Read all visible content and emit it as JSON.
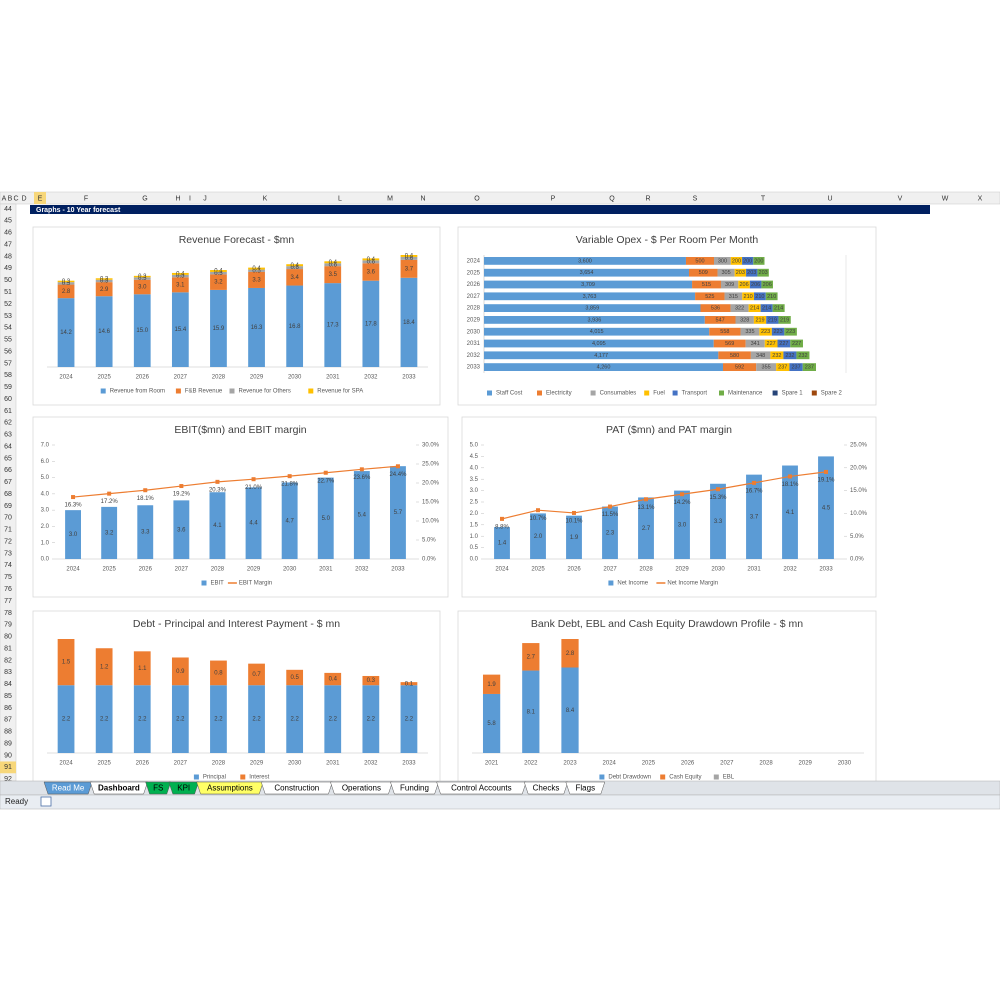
{
  "sheet": {
    "columns": [
      "A",
      "B",
      "C",
      "D",
      "E",
      "F",
      "G",
      "H",
      "I",
      "J",
      "K",
      "L",
      "M",
      "N",
      "O",
      "P",
      "Q",
      "R",
      "S",
      "T",
      "U",
      "V",
      "W",
      "X"
    ],
    "rows": [
      44,
      45,
      46,
      47,
      48,
      49,
      50,
      51,
      52,
      53,
      54,
      55,
      56,
      57,
      58,
      59,
      60,
      61,
      62,
      63,
      64,
      65,
      66,
      67,
      68,
      69,
      70,
      71,
      72,
      73,
      74,
      75,
      76,
      77,
      78,
      79,
      80,
      81,
      82,
      83,
      84,
      85,
      86,
      87,
      88,
      89,
      90,
      91,
      92
    ],
    "banner": "Graphs - 10 Year forecast",
    "tabs": [
      "Read Me",
      "Dashboard",
      "FS",
      "KPI",
      "Assumptions",
      "Construction",
      "Operations",
      "Funding",
      "Control Accounts",
      "Checks",
      "Flags"
    ],
    "status": "Ready"
  },
  "chart_data": [
    {
      "type": "bar",
      "title": "Revenue Forecast - $mn",
      "categories": [
        "2024",
        "2025",
        "2026",
        "2027",
        "2028",
        "2029",
        "2030",
        "2031",
        "2032",
        "2033"
      ],
      "series": [
        {
          "name": "Revenue from Room",
          "color": "#5b9bd5",
          "values": [
            14.2,
            14.6,
            15.0,
            15.4,
            15.9,
            16.3,
            16.8,
            17.3,
            17.8,
            18.4
          ],
          "value_labels": [
            "14.2",
            "14.6",
            "15.0",
            "15.4",
            "15.9",
            "16.3",
            "16.8",
            "17.3",
            "17.8",
            "18.4"
          ]
        },
        {
          "name": "F&B Revenue",
          "color": "#ed7d31",
          "values": [
            2.8,
            2.9,
            3.0,
            3.1,
            3.2,
            3.3,
            3.4,
            3.5,
            3.6,
            3.7
          ],
          "value_labels": [
            "2.8",
            "2.9",
            "3.0",
            "3.1",
            "3.2",
            "3.3",
            "3.4",
            "3.5",
            "3.6",
            "3.7"
          ]
        },
        {
          "name": "Revenue for Others",
          "color": "#a5a5a5",
          "values": [
            0.5,
            0.5,
            0.5,
            0.5,
            0.5,
            0.5,
            0.6,
            0.6,
            0.6,
            0.6
          ]
        },
        {
          "name": "Revenue for SPA",
          "color": "#ffc000",
          "values": [
            0.3,
            0.3,
            0.3,
            0.4,
            0.4,
            0.4,
            0.4,
            0.4,
            0.4,
            0.4
          ]
        }
      ]
    },
    {
      "type": "barh",
      "title": "Variable Opex - $ Per Room Per Month",
      "categories": [
        "2024",
        "2025",
        "2026",
        "2027",
        "2028",
        "2029",
        "2030",
        "2031",
        "2032",
        "2033"
      ],
      "series": [
        {
          "name": "Staff Cost",
          "color": "#5b9bd5",
          "values": [
            3600,
            3654,
            3709,
            3763,
            3859,
            3936,
            4015,
            4095,
            4177,
            4260
          ],
          "value_labels": [
            "3,600",
            "3,654",
            "3,709",
            "3,763",
            "3,859",
            "3,936",
            "4,015",
            "4,095",
            "4,177",
            "4,260"
          ]
        },
        {
          "name": "Electricity",
          "color": "#ed7d31",
          "values": [
            500,
            509,
            515,
            525,
            536,
            547,
            558,
            569,
            580,
            592
          ]
        },
        {
          "name": "Consumables",
          "color": "#a5a5a5",
          "values": [
            300,
            305,
            309,
            315,
            322,
            328,
            335,
            341,
            348,
            355
          ]
        },
        {
          "name": "Fuel",
          "color": "#ffc000",
          "values": [
            200,
            203,
            206,
            210,
            214,
            219,
            223,
            227,
            232,
            237
          ]
        },
        {
          "name": "Transport",
          "color": "#4472c4",
          "values": [
            200,
            203,
            206,
            210,
            214,
            219,
            223,
            227,
            232,
            237
          ]
        },
        {
          "name": "Maintenance",
          "color": "#70ad47",
          "values": [
            200,
            203,
            206,
            210,
            214,
            219,
            223,
            227,
            232,
            237
          ]
        },
        {
          "name": "Spare 1",
          "color": "#264478",
          "values": [
            0,
            0,
            0,
            0,
            0,
            0,
            0,
            0,
            0,
            0
          ]
        },
        {
          "name": "Spare 2",
          "color": "#9e480e",
          "values": [
            0,
            0,
            0,
            0,
            0,
            0,
            0,
            0,
            0,
            0
          ]
        }
      ]
    },
    {
      "type": "combo",
      "title": "EBIT($mn) and EBIT margin",
      "categories": [
        "2024",
        "2025",
        "2026",
        "2027",
        "2028",
        "2029",
        "2030",
        "2031",
        "2032",
        "2033"
      ],
      "ylim": [
        0,
        7
      ],
      "yticks": [
        {
          "value": 0,
          "label": "0.0"
        },
        {
          "value": 1,
          "label": "1.0"
        },
        {
          "value": 2,
          "label": "2.0"
        },
        {
          "value": 3,
          "label": "3.0"
        },
        {
          "value": 4,
          "label": "4.0"
        },
        {
          "value": 5,
          "label": "5.0"
        },
        {
          "value": 6,
          "label": "6.0"
        },
        {
          "value": 7,
          "label": "7.0"
        }
      ],
      "y2lim": [
        0,
        30
      ],
      "y2ticks": [
        {
          "value": 0,
          "label": "0.0%"
        },
        {
          "value": 5,
          "label": "5.0%"
        },
        {
          "value": 10,
          "label": "10.0%"
        },
        {
          "value": 15,
          "label": "15.0%"
        },
        {
          "value": 20,
          "label": "20.0%"
        },
        {
          "value": 25,
          "label": "25.0%"
        },
        {
          "value": 30,
          "label": "30.0%"
        }
      ],
      "series": [
        {
          "name": "EBIT",
          "color": "#5b9bd5",
          "values": [
            3.0,
            3.2,
            3.3,
            3.6,
            4.1,
            4.4,
            4.7,
            5.0,
            5.4,
            5.7
          ],
          "value_labels": [
            "3.0",
            "3.2",
            "3.3",
            "3.6",
            "4.1",
            "4.4",
            "4.7",
            "5.0",
            "5.4",
            "5.7"
          ]
        },
        {
          "name": "EBIT Margin",
          "color": "#ed7d31",
          "axis": "y2",
          "values": [
            16.3,
            17.2,
            18.1,
            19.2,
            20.3,
            21.0,
            21.8,
            22.7,
            23.6,
            24.4
          ],
          "value_labels": [
            "16.3%",
            "17.2%",
            "18.1%",
            "19.2%",
            "20.3%",
            "21.0%",
            "21.8%",
            "22.7%",
            "23.6%",
            "24.4%"
          ]
        }
      ]
    },
    {
      "type": "combo",
      "title": "PAT ($mn)  and PAT margin",
      "categories": [
        "2024",
        "2025",
        "2026",
        "2027",
        "2028",
        "2029",
        "2030",
        "2031",
        "2032",
        "2033"
      ],
      "ylim": [
        0,
        5
      ],
      "yticks": [
        {
          "value": 0,
          "label": "0.0"
        },
        {
          "value": 0.5,
          "label": "0.5"
        },
        {
          "value": 1,
          "label": "1.0"
        },
        {
          "value": 1.5,
          "label": "1.5"
        },
        {
          "value": 2,
          "label": "2.0"
        },
        {
          "value": 2.5,
          "label": "2.5"
        },
        {
          "value": 3,
          "label": "3.0"
        },
        {
          "value": 3.5,
          "label": "3.5"
        },
        {
          "value": 4,
          "label": "4.0"
        },
        {
          "value": 4.5,
          "label": "4.5"
        },
        {
          "value": 5,
          "label": "5.0"
        }
      ],
      "y2lim": [
        0,
        25
      ],
      "y2ticks": [
        {
          "value": 0,
          "label": "0.0%"
        },
        {
          "value": 5,
          "label": "5.0%"
        },
        {
          "value": 10,
          "label": "10.0%"
        },
        {
          "value": 15,
          "label": "15.0%"
        },
        {
          "value": 20,
          "label": "20.0%"
        },
        {
          "value": 25,
          "label": "25.0%"
        }
      ],
      "series": [
        {
          "name": "Net Income",
          "color": "#5b9bd5",
          "values": [
            1.4,
            2.0,
            1.9,
            2.3,
            2.7,
            3.0,
            3.3,
            3.7,
            4.1,
            4.5
          ],
          "value_labels": [
            "1.4",
            "2.0",
            "1.9",
            "2.3",
            "2.7",
            "3.0",
            "3.3",
            "3.7",
            "4.1",
            "4.5"
          ]
        },
        {
          "name": "Net Income Margin",
          "color": "#ed7d31",
          "axis": "y2",
          "values": [
            8.8,
            10.7,
            10.1,
            11.5,
            13.1,
            14.2,
            15.3,
            16.7,
            18.1,
            19.1
          ],
          "value_labels": [
            "8.8%",
            "10.7%",
            "10.1%",
            "11.5%",
            "13.1%",
            "14.2%",
            "15.3%",
            "16.7%",
            "18.1%",
            "19.1%"
          ]
        }
      ]
    },
    {
      "type": "bar",
      "title": "Debt - Principal and Interest Payment - $ mn",
      "categories": [
        "2024",
        "2025",
        "2026",
        "2027",
        "2028",
        "2029",
        "2030",
        "2031",
        "2032",
        "2033"
      ],
      "series": [
        {
          "name": "Principal",
          "color": "#5b9bd5",
          "values": [
            2.2,
            2.2,
            2.2,
            2.2,
            2.2,
            2.2,
            2.2,
            2.2,
            2.2,
            2.2
          ]
        },
        {
          "name": "Interest",
          "color": "#ed7d31",
          "values": [
            1.5,
            1.2,
            1.1,
            0.9,
            0.8,
            0.7,
            0.5,
            0.4,
            0.3,
            0.1
          ]
        }
      ]
    },
    {
      "type": "bar",
      "title": "Bank Debt, EBL and Cash Equity Drawdown Profile - $ mn",
      "categories": [
        "2021",
        "2022",
        "2023",
        "2024",
        "2025",
        "2026",
        "2027",
        "2028",
        "2029",
        "2030"
      ],
      "series": [
        {
          "name": "Debt Drawdown",
          "color": "#5b9bd5",
          "values": [
            5.8,
            8.1,
            8.4,
            0,
            0,
            0,
            0,
            0,
            0,
            0
          ]
        },
        {
          "name": "Cash Equity",
          "color": "#ed7d31",
          "values": [
            1.9,
            2.7,
            2.8,
            0,
            0,
            0,
            0,
            0,
            0,
            0
          ]
        },
        {
          "name": "EBL",
          "color": "#a5a5a5",
          "values": [
            0,
            0,
            0,
            0,
            0,
            0,
            0,
            0,
            0,
            0
          ]
        }
      ]
    }
  ]
}
